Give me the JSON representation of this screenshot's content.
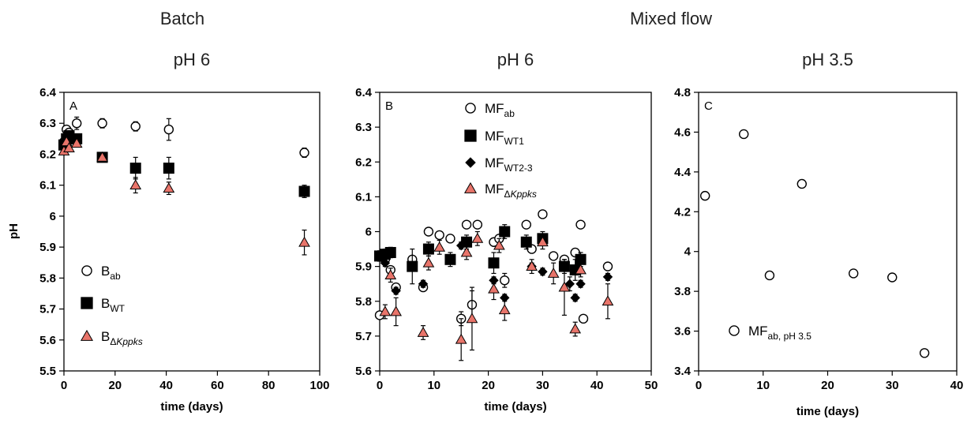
{
  "headers": {
    "batch": "Batch",
    "mixed_flow": "Mixed flow"
  },
  "colors": {
    "triangle_fill": "#e8746a",
    "marker_stroke": "#000000",
    "open_fill": "#ffffff"
  },
  "chart_data": [
    {
      "type": "scatter",
      "title": "pH 6",
      "panel_label": "A",
      "xlabel": "time (days)",
      "ylabel": "pH",
      "xlim": [
        0,
        100
      ],
      "ylim": [
        5.5,
        6.4
      ],
      "xticks": [
        0,
        20,
        40,
        60,
        80,
        100
      ],
      "yticks": [
        5.5,
        5.6,
        5.7,
        5.8,
        5.9,
        6.0,
        6.1,
        6.2,
        6.3,
        6.4
      ],
      "ytick_labels": [
        "5.5",
        "5.6",
        "5.7",
        "5.8",
        "5.9",
        "6",
        "6.1",
        "6.2",
        "6.3",
        "6.4"
      ],
      "legend_position": "bottom-left",
      "grid": false,
      "series": [
        {
          "name": "B",
          "name_sub": "ab",
          "sub_italic": false,
          "marker": "circle",
          "x": [
            0,
            1,
            2,
            5,
            15,
            28,
            41,
            94
          ],
          "y": [
            6.24,
            6.28,
            6.27,
            6.3,
            6.3,
            6.29,
            6.28,
            6.205
          ],
          "err": [
            0.01,
            0.01,
            0.01,
            0.02,
            0.015,
            0.015,
            0.035,
            0.015
          ]
        },
        {
          "name": "B",
          "name_sub": "WT",
          "sub_italic": false,
          "marker": "square",
          "x": [
            0,
            1,
            2,
            5,
            15,
            28,
            41,
            94
          ],
          "y": [
            6.23,
            6.25,
            6.26,
            6.25,
            6.19,
            6.155,
            6.155,
            6.08
          ],
          "err": [
            0.01,
            0.01,
            0.015,
            0.015,
            0.015,
            0.035,
            0.035,
            0.02
          ]
        },
        {
          "name": "B",
          "name_sub": "ΔKppks",
          "sub_italic": true,
          "marker": "triangle",
          "x": [
            0,
            1,
            2,
            5,
            15,
            28,
            41,
            94
          ],
          "y": [
            6.21,
            6.24,
            6.22,
            6.235,
            6.19,
            6.1,
            6.09,
            5.915
          ],
          "err": [
            0.01,
            0.01,
            0.01,
            0.01,
            0.01,
            0.025,
            0.02,
            0.04
          ]
        }
      ]
    },
    {
      "type": "scatter",
      "title": "pH 6",
      "panel_label": "B",
      "xlabel": "time (days)",
      "ylabel": "",
      "xlim": [
        0,
        50
      ],
      "ylim": [
        5.6,
        6.4
      ],
      "xticks": [
        0,
        10,
        20,
        30,
        40,
        50
      ],
      "yticks": [
        5.6,
        5.7,
        5.8,
        5.9,
        6.0,
        6.1,
        6.2,
        6.3,
        6.4
      ],
      "ytick_labels": [
        "5.6",
        "5.7",
        "5.8",
        "5.9",
        "6",
        "6.1",
        "6.2",
        "6.3",
        "6.4"
      ],
      "legend_position": "top-center",
      "grid": false,
      "series": [
        {
          "name": "MF",
          "name_sub": "ab",
          "sub_italic": false,
          "marker": "circle",
          "x": [
            0,
            1,
            2,
            3,
            6,
            8,
            9,
            11,
            13,
            15,
            16,
            17,
            18,
            21,
            22,
            23,
            27,
            28,
            30,
            32,
            34,
            36,
            37,
            37.5,
            42
          ],
          "y": [
            5.76,
            5.92,
            5.89,
            5.84,
            5.92,
            5.84,
            6.0,
            5.99,
            5.98,
            5.75,
            6.02,
            5.79,
            6.02,
            5.97,
            5.98,
            5.86,
            6.02,
            5.95,
            6.05,
            5.93,
            5.92,
            5.94,
            6.02,
            5.75,
            5.9
          ],
          "err": [
            0.01,
            0.01,
            0.01,
            0.01,
            0.01,
            0.01,
            0.01,
            0.01,
            0.01,
            0.02,
            0.01,
            0.04,
            0.01,
            0.01,
            0.01,
            0.02,
            0.01,
            0.01,
            0.01,
            0.01,
            0.01,
            0.01,
            0.01,
            0.01,
            0.01
          ]
        },
        {
          "name": "MF",
          "name_sub": "WT1",
          "sub_italic": false,
          "marker": "square",
          "x": [
            0,
            1,
            2,
            6,
            9,
            13,
            16,
            21,
            23,
            27,
            30,
            34,
            36,
            37
          ],
          "y": [
            5.93,
            5.935,
            5.94,
            5.9,
            5.95,
            5.92,
            5.97,
            5.91,
            6.0,
            5.97,
            5.98,
            5.9,
            5.89,
            5.92
          ],
          "err": [
            0.015,
            0.015,
            0.015,
            0.05,
            0.02,
            0.02,
            0.02,
            0.03,
            0.02,
            0.02,
            0.02,
            0.02,
            0.03,
            0.02
          ]
        },
        {
          "name": "MF",
          "name_sub": "WT2-3",
          "sub_italic": false,
          "marker": "diamond",
          "x": [
            1,
            3,
            8,
            15,
            21,
            23,
            28,
            30,
            35,
            36,
            37,
            42
          ],
          "y": [
            5.91,
            5.83,
            5.85,
            5.96,
            5.86,
            5.81,
            5.9,
            5.885,
            5.85,
            5.81,
            5.85,
            5.87
          ],
          "err": [
            0.01,
            0.01,
            0.01,
            0.01,
            0.01,
            0.01,
            0.01,
            0.01,
            0.02,
            0.01,
            0.01,
            0.01
          ]
        },
        {
          "name": "MF",
          "name_sub": "ΔKppks",
          "sub_italic": true,
          "marker": "triangle",
          "x": [
            1,
            2,
            3,
            8,
            9,
            11,
            15,
            16,
            17,
            18,
            21,
            22,
            23,
            28,
            30,
            32,
            34,
            36,
            37,
            42
          ],
          "y": [
            5.77,
            5.875,
            5.77,
            5.71,
            5.91,
            5.955,
            5.69,
            5.94,
            5.75,
            5.98,
            5.835,
            5.96,
            5.775,
            5.9,
            5.97,
            5.88,
            5.84,
            5.72,
            5.89,
            5.8
          ],
          "err": [
            0.02,
            0.02,
            0.04,
            0.02,
            0.02,
            0.02,
            0.06,
            0.02,
            0.09,
            0.02,
            0.03,
            0.02,
            0.03,
            0.02,
            0.02,
            0.03,
            0.08,
            0.02,
            0.02,
            0.05
          ]
        }
      ]
    },
    {
      "type": "scatter",
      "title": "pH 3.5",
      "panel_label": "C",
      "xlabel": "time (days)",
      "ylabel": "",
      "xlim": [
        0,
        40
      ],
      "ylim": [
        3.4,
        4.8
      ],
      "xticks": [
        0,
        10,
        20,
        30,
        40
      ],
      "yticks": [
        3.4,
        3.6,
        3.8,
        4.0,
        4.2,
        4.4,
        4.6,
        4.8
      ],
      "ytick_labels": [
        "3.4",
        "3.6",
        "3.8",
        "4",
        "4.2",
        "4.4",
        "4.6",
        "4.8"
      ],
      "legend_position": "bottom-left",
      "grid": false,
      "series": [
        {
          "name": "MF",
          "name_sub": "ab, pH 3.5",
          "sub_italic": false,
          "marker": "circle",
          "x": [
            1,
            7,
            11,
            16,
            24,
            30,
            35
          ],
          "y": [
            4.28,
            4.59,
            3.88,
            4.34,
            3.89,
            3.87,
            3.49
          ],
          "err": []
        }
      ]
    }
  ]
}
